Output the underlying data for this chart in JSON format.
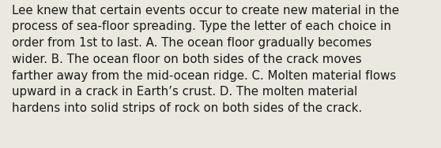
{
  "lines": [
    "Lee knew that certain events occur to create new material in the",
    "process of sea-floor spreading. Type the letter of each choice in",
    "order from 1st to last. A. The ocean floor gradually becomes",
    "wider. B. The ocean floor on both sides of the crack moves",
    "farther away from the mid-ocean ridge. C. Molten material flows",
    "upward in a crack in Earth’s crust. D. The molten material",
    "hardens into solid strips of rock on both sides of the crack."
  ],
  "background_color": "#eae8df",
  "text_color": "#1a1a1a",
  "font_size": 10.8,
  "font_family": "DejaVu Sans",
  "fig_width": 5.58,
  "fig_height": 1.88,
  "dpi": 100
}
